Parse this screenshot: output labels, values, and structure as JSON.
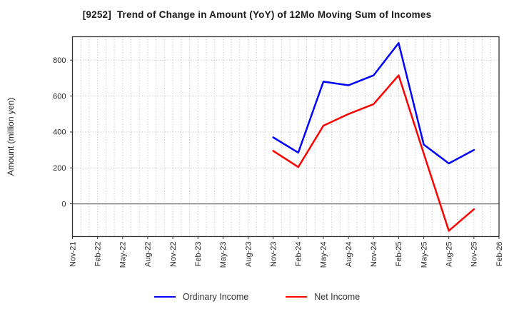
{
  "title": "[9252]  Trend of Change in Amount (YoY) of 12Mo Moving Sum of Incomes",
  "chart_data": {
    "type": "line",
    "title": "[9252]  Trend of Change in Amount (YoY) of 12Mo Moving Sum of Incomes",
    "xlabel": "",
    "ylabel": "Amount (million yen)",
    "x_tick_labels": [
      "Nov-21",
      "Feb-22",
      "May-22",
      "Aug-22",
      "Nov-22",
      "Feb-23",
      "May-23",
      "Aug-23",
      "Nov-23",
      "Feb-24",
      "May-24",
      "Aug-24",
      "Nov-24",
      "Feb-25",
      "May-25",
      "Aug-25",
      "Nov-25",
      "Feb-26"
    ],
    "months_per_tick": 3,
    "total_months": 51,
    "y_ticks": [
      0,
      200,
      400,
      600,
      800
    ],
    "ylim": [
      -182,
      930
    ],
    "grid": "dotted gray, vertical line every month, horizontal at each y tick, solid line at 0",
    "legend_position": "bottom-center",
    "series": [
      {
        "name": "Ordinary Income",
        "color": "#0000ff",
        "x": [
          "Nov-23",
          "Feb-24",
          "May-24",
          "Aug-24",
          "Nov-24",
          "Feb-25",
          "May-25",
          "Aug-25",
          "Nov-25"
        ],
        "values": [
          370,
          285,
          680,
          660,
          715,
          895,
          330,
          225,
          300
        ]
      },
      {
        "name": "Net Income",
        "color": "#ff0000",
        "x": [
          "Nov-23",
          "Feb-24",
          "May-24",
          "Aug-24",
          "Nov-24",
          "Feb-25",
          "May-25",
          "Aug-25",
          "Nov-25"
        ],
        "values": [
          295,
          205,
          435,
          500,
          555,
          715,
          280,
          -150,
          -30
        ]
      }
    ]
  },
  "colors": {
    "ordinary_income": "#0000ff",
    "net_income": "#ff0000",
    "grid": "#b0b0b0",
    "zero_line": "#666666",
    "frame": "#333333",
    "tick_text": "#262626"
  }
}
